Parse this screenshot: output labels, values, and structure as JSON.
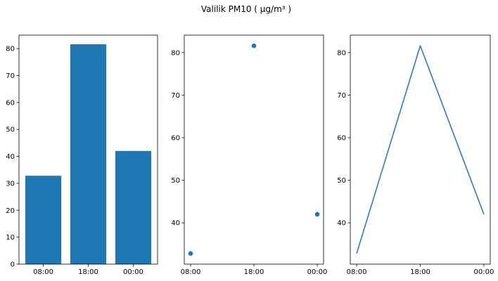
{
  "figure": {
    "title": "Valilik PM10 ( µg/m³ )",
    "color": "#1f77b4"
  },
  "chart_data": [
    {
      "type": "bar",
      "categories": [
        "08:00",
        "18:00",
        "00:00"
      ],
      "values": [
        32.8,
        81.6,
        42.0
      ],
      "ylim": [
        0,
        85
      ],
      "yticks": [
        0,
        10,
        20,
        30,
        40,
        50,
        60,
        70,
        80
      ],
      "grid": false
    },
    {
      "type": "scatter",
      "categories": [
        "08:00",
        "18:00",
        "00:00"
      ],
      "values": [
        32.8,
        81.6,
        42.0
      ],
      "ylim": [
        30.3,
        84.1
      ],
      "yticks": [
        40,
        50,
        60,
        70,
        80
      ],
      "grid": false
    },
    {
      "type": "line",
      "categories": [
        "08:00",
        "18:00",
        "00:00"
      ],
      "values": [
        32.8,
        81.6,
        42.0
      ],
      "ylim": [
        30.3,
        84.1
      ],
      "yticks": [
        40,
        50,
        60,
        70,
        80
      ],
      "grid": false
    }
  ]
}
